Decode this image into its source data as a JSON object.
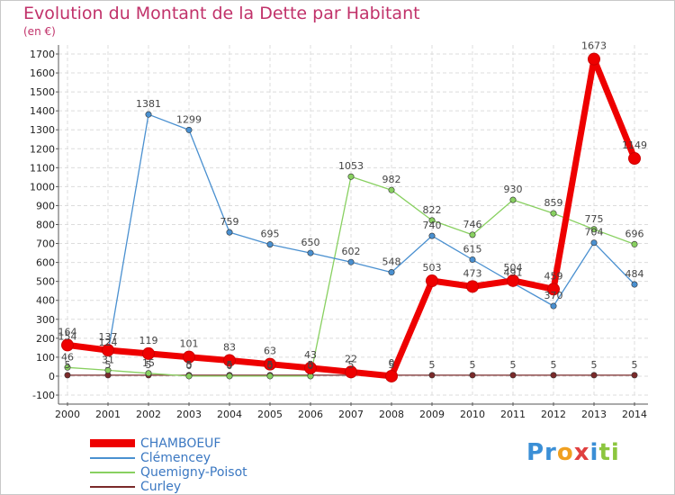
{
  "chart_data": {
    "type": "line",
    "title": "Evolution du Montant de la Dette par Habitant",
    "unit_label": "(en €)",
    "x": [
      "2000",
      "2001",
      "2002",
      "2003",
      "2004",
      "2005",
      "2006",
      "2007",
      "2008",
      "2009",
      "2010",
      "2011",
      "2012",
      "2013",
      "2014"
    ],
    "ylim": [
      -100,
      1700
    ],
    "yticks": [
      -100,
      0,
      100,
      200,
      300,
      400,
      500,
      600,
      700,
      800,
      900,
      1000,
      1100,
      1200,
      1300,
      1400,
      1500,
      1600,
      1700
    ],
    "grid": true,
    "legend_position": "bottom-left",
    "series": [
      {
        "name": "CHAMBOEUF",
        "color": "#ee0000",
        "values": [
          164,
          137,
          119,
          101,
          83,
          63,
          43,
          22,
          0,
          503,
          473,
          504,
          459,
          1673,
          1149
        ],
        "labels": [
          "164",
          "137",
          "119",
          "101",
          "83",
          "63",
          "43",
          "22",
          "0",
          "503",
          "473",
          "504",
          "459",
          "1673",
          "1149"
        ]
      },
      {
        "name": "Clémencey",
        "color": "#4a90d0",
        "values": [
          154,
          124,
          1381,
          1299,
          759,
          695,
          650,
          602,
          548,
          740,
          615,
          491,
          370,
          704,
          484
        ],
        "labels": [
          "154",
          "124",
          "1381",
          "1299",
          "759",
          "695",
          "650",
          "602",
          "548",
          "740",
          "615",
          "491",
          "370",
          "704",
          "484"
        ]
      },
      {
        "name": "Quemigny-Poisot",
        "color": "#88d060",
        "values": [
          46,
          31,
          15,
          0,
          0,
          0,
          0,
          1053,
          982,
          822,
          746,
          930,
          859,
          775,
          696
        ],
        "labels": [
          "46",
          "31",
          "15",
          "0",
          "0",
          "0",
          "0",
          "1053",
          "982",
          "822",
          "746",
          "930",
          "859",
          "775",
          "696"
        ]
      },
      {
        "name": "Curley",
        "color": "#7a2a2a",
        "values": [
          5,
          5,
          5,
          5,
          5,
          5,
          5,
          5,
          5,
          5,
          5,
          5,
          5,
          5,
          5
        ],
        "labels": [
          "5",
          "5",
          "5",
          "5",
          "5",
          "5",
          "5",
          "5",
          "5",
          "5",
          "5",
          "5",
          "5",
          "5",
          "5"
        ]
      }
    ]
  },
  "logo": {
    "parts": [
      "Pr",
      "o",
      "x",
      "i",
      "ti"
    ],
    "colors": [
      "#3b8fd6",
      "#f0a020",
      "#e04040",
      "#3b8fd6",
      "#8cc63f"
    ]
  }
}
